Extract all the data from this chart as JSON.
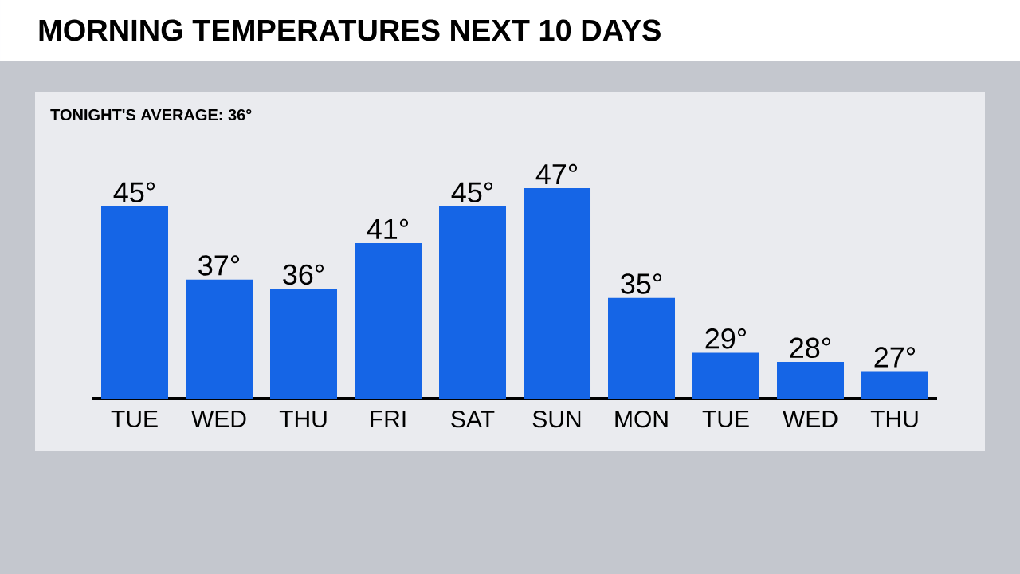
{
  "chart_data": {
    "type": "bar",
    "title": "MORNING TEMPERATURES NEXT 10 DAYS",
    "annotations": [
      "TONIGHT'S AVERAGE: 36°"
    ],
    "categories": [
      "TUE",
      "WED",
      "THU",
      "FRI",
      "SAT",
      "SUN",
      "MON",
      "TUE",
      "WED",
      "THU"
    ],
    "values": [
      45,
      37,
      36,
      41,
      45,
      47,
      35,
      29,
      28,
      27
    ],
    "value_labels": [
      "45°",
      "37°",
      "36°",
      "41°",
      "45°",
      "47°",
      "35°",
      "29°",
      "28°",
      "27°"
    ],
    "color": "#1565e6",
    "ylim": [
      24,
      47
    ],
    "tick_labels": "x"
  }
}
